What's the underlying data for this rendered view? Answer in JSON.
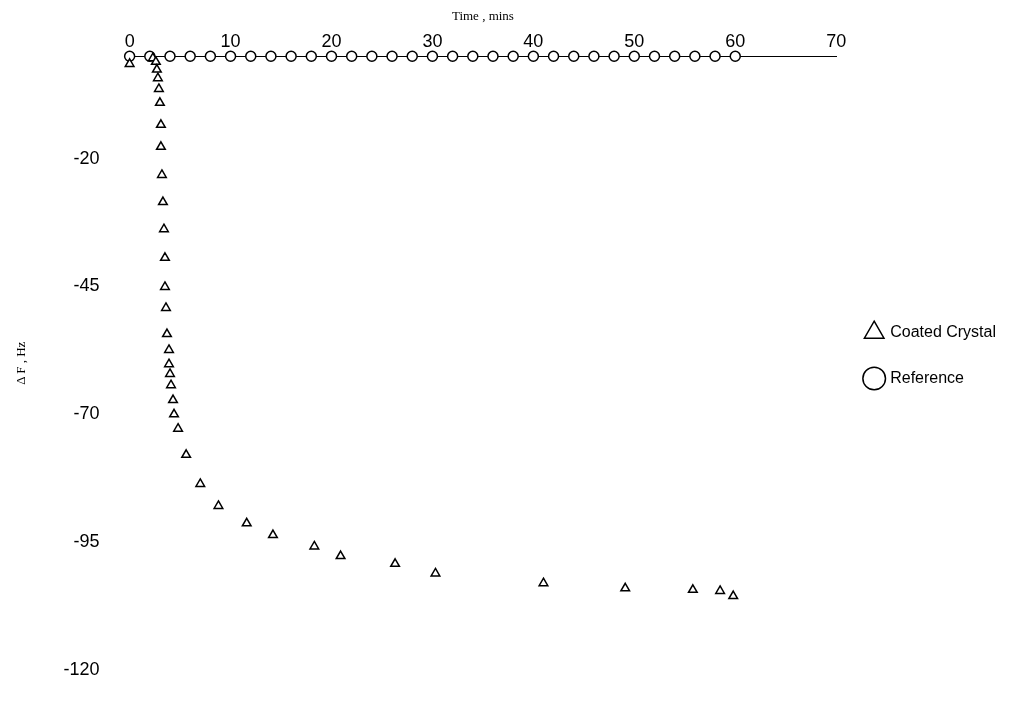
{
  "chart_data": {
    "type": "scatter",
    "xlabel": "Time , mins",
    "ylabel": "Δ F , Hz",
    "xlim": [
      0,
      70
    ],
    "xticks": [
      0,
      10,
      20,
      30,
      40,
      50,
      60,
      70
    ],
    "ylim": [
      -120,
      0
    ],
    "yticks": [
      -120,
      -95,
      -70,
      -45,
      -20
    ],
    "grid": false,
    "legend": "right",
    "series": [
      {
        "name": "Coated Crystal",
        "color": "#000000",
        "marker": "triangle",
        "x": [
          0,
          2.3,
          2.6,
          2.7,
          2.8,
          2.9,
          3.0,
          3.1,
          3.1,
          3.2,
          3.3,
          3.4,
          3.5,
          3.5,
          3.6,
          3.7,
          3.9,
          3.9,
          4.0,
          4.1,
          4.3,
          4.4,
          4.8,
          5.6,
          7.0,
          8.8,
          11.6,
          14.2,
          18.3,
          20.9,
          26.3,
          30.3,
          41.0,
          49.1,
          55.8,
          58.5,
          59.8
        ],
        "values": [
          -1.5,
          -0.4,
          -1.1,
          -2.6,
          -4.3,
          -6.4,
          -9.1,
          -13.4,
          -17.7,
          -23.2,
          -28.5,
          -33.8,
          -39.4,
          -45.1,
          -49.2,
          -54.3,
          -57.4,
          -60.2,
          -62.1,
          -64.3,
          -67.2,
          -70,
          -72.8,
          -77.9,
          -83.6,
          -87.9,
          -91.3,
          -93.6,
          -95.8,
          -97.7,
          -99.2,
          -101.1,
          -103,
          -104,
          -104.3,
          -104.5,
          -105.5
        ]
      },
      {
        "name": "Reference",
        "color": "#000000",
        "marker": "circle",
        "x": [
          0,
          2,
          4,
          6,
          8,
          10,
          12,
          14,
          16,
          18,
          20,
          22,
          24,
          26,
          28,
          30,
          32,
          34,
          36,
          38,
          40,
          42,
          44,
          46,
          48,
          50,
          52,
          54,
          56,
          58,
          60
        ],
        "values": [
          0,
          0,
          0,
          0,
          0,
          0,
          0,
          0,
          0,
          0,
          0,
          0,
          0,
          0,
          0,
          0,
          0,
          0,
          0,
          0,
          0,
          0,
          0,
          0,
          0,
          0,
          0,
          0,
          0,
          0,
          0
        ]
      }
    ]
  }
}
